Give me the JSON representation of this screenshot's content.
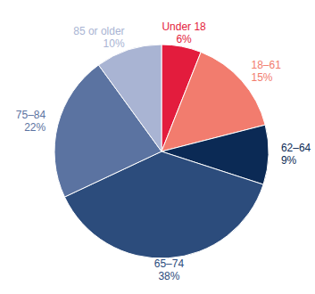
{
  "chart_data": {
    "type": "pie",
    "categories": [
      "Under 18",
      "18–61",
      "62–64",
      "65–74",
      "75–84",
      "85 or older"
    ],
    "values": [
      6,
      15,
      9,
      38,
      22,
      10
    ],
    "value_labels": [
      "6%",
      "15%",
      "9%",
      "38%",
      "22%",
      "10%"
    ],
    "colors": [
      "#e31c3d",
      "#f27c6e",
      "#0b2a55",
      "#2c4c7c",
      "#5b73a1",
      "#a9b4d3"
    ],
    "data_labels": true
  }
}
